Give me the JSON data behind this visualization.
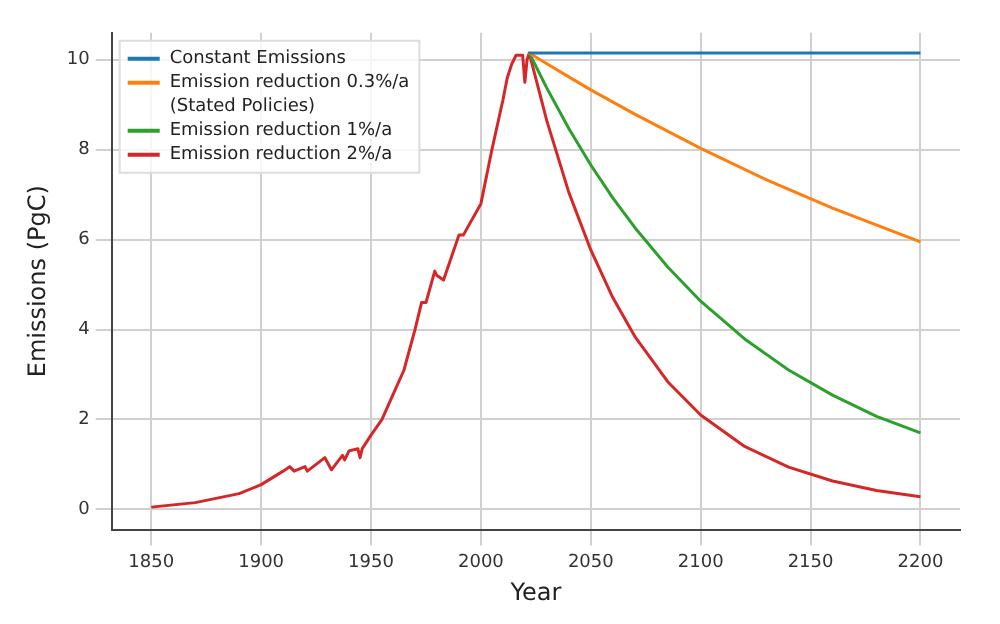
{
  "chart_data": {
    "type": "line",
    "xlabel": "Year",
    "ylabel": "Emissions (PgC)",
    "xlim": [
      1832,
      2218
    ],
    "ylim": [
      -0.45,
      10.6
    ],
    "xticks": [
      1850,
      1900,
      1950,
      2000,
      2050,
      2100,
      2150,
      2200
    ],
    "yticks": [
      0,
      2,
      4,
      6,
      8,
      10
    ],
    "grid": true,
    "legend": "top left",
    "marker": "none",
    "line_style": "solid",
    "series": [
      {
        "name": "Constant Emissions",
        "color": "#1f77b4",
        "x": [
          2022,
          2200
        ],
        "values": [
          10.15,
          10.15
        ]
      },
      {
        "name": "Emission reduction 0.3%/a (Stated Policies)",
        "color": "#ff7f0e",
        "x": [
          2022,
          2030,
          2040,
          2050,
          2070,
          2100,
          2130,
          2160,
          2200
        ],
        "values": [
          10.15,
          9.91,
          9.62,
          9.33,
          8.79,
          8.03,
          7.33,
          6.7,
          5.95
        ]
      },
      {
        "name": "Emission reduction 1%/a",
        "color": "#2ca02c",
        "x": [
          2022,
          2030,
          2040,
          2050,
          2060,
          2070,
          2085,
          2100,
          2120,
          2140,
          2160,
          2180,
          2200
        ],
        "values": [
          10.15,
          9.37,
          8.47,
          7.66,
          6.93,
          6.27,
          5.39,
          4.63,
          3.79,
          3.1,
          2.54,
          2.07,
          1.7
        ]
      },
      {
        "name": "Emission reduction 2%/a",
        "color": "#d62728",
        "x": [
          1850,
          1860,
          1870,
          1880,
          1890,
          1900,
          1905,
          1910,
          1913,
          1915,
          1920,
          1921,
          1925,
          1929,
          1932,
          1937,
          1938,
          1940,
          1944,
          1945,
          1946,
          1950,
          1955,
          1960,
          1965,
          1970,
          1973,
          1975,
          1979,
          1980,
          1983,
          1990,
          1992,
          2000,
          2005,
          2010,
          2012,
          2014,
          2016,
          2019,
          2020,
          2021,
          2022,
          2030,
          2040,
          2050,
          2060,
          2070,
          2085,
          2100,
          2120,
          2140,
          2160,
          2180,
          2200
        ],
        "values": [
          0.05,
          0.1,
          0.15,
          0.25,
          0.35,
          0.55,
          0.7,
          0.85,
          0.95,
          0.85,
          0.95,
          0.85,
          1.0,
          1.15,
          0.88,
          1.2,
          1.1,
          1.3,
          1.35,
          1.15,
          1.35,
          1.65,
          2.0,
          2.55,
          3.1,
          4.0,
          4.6,
          4.6,
          5.3,
          5.2,
          5.1,
          6.1,
          6.1,
          6.8,
          8.0,
          9.1,
          9.6,
          9.9,
          10.1,
          10.1,
          9.5,
          10.0,
          10.15,
          8.64,
          7.05,
          5.77,
          4.71,
          3.85,
          2.84,
          2.1,
          1.4,
          0.94,
          0.63,
          0.42,
          0.28
        ]
      }
    ]
  }
}
